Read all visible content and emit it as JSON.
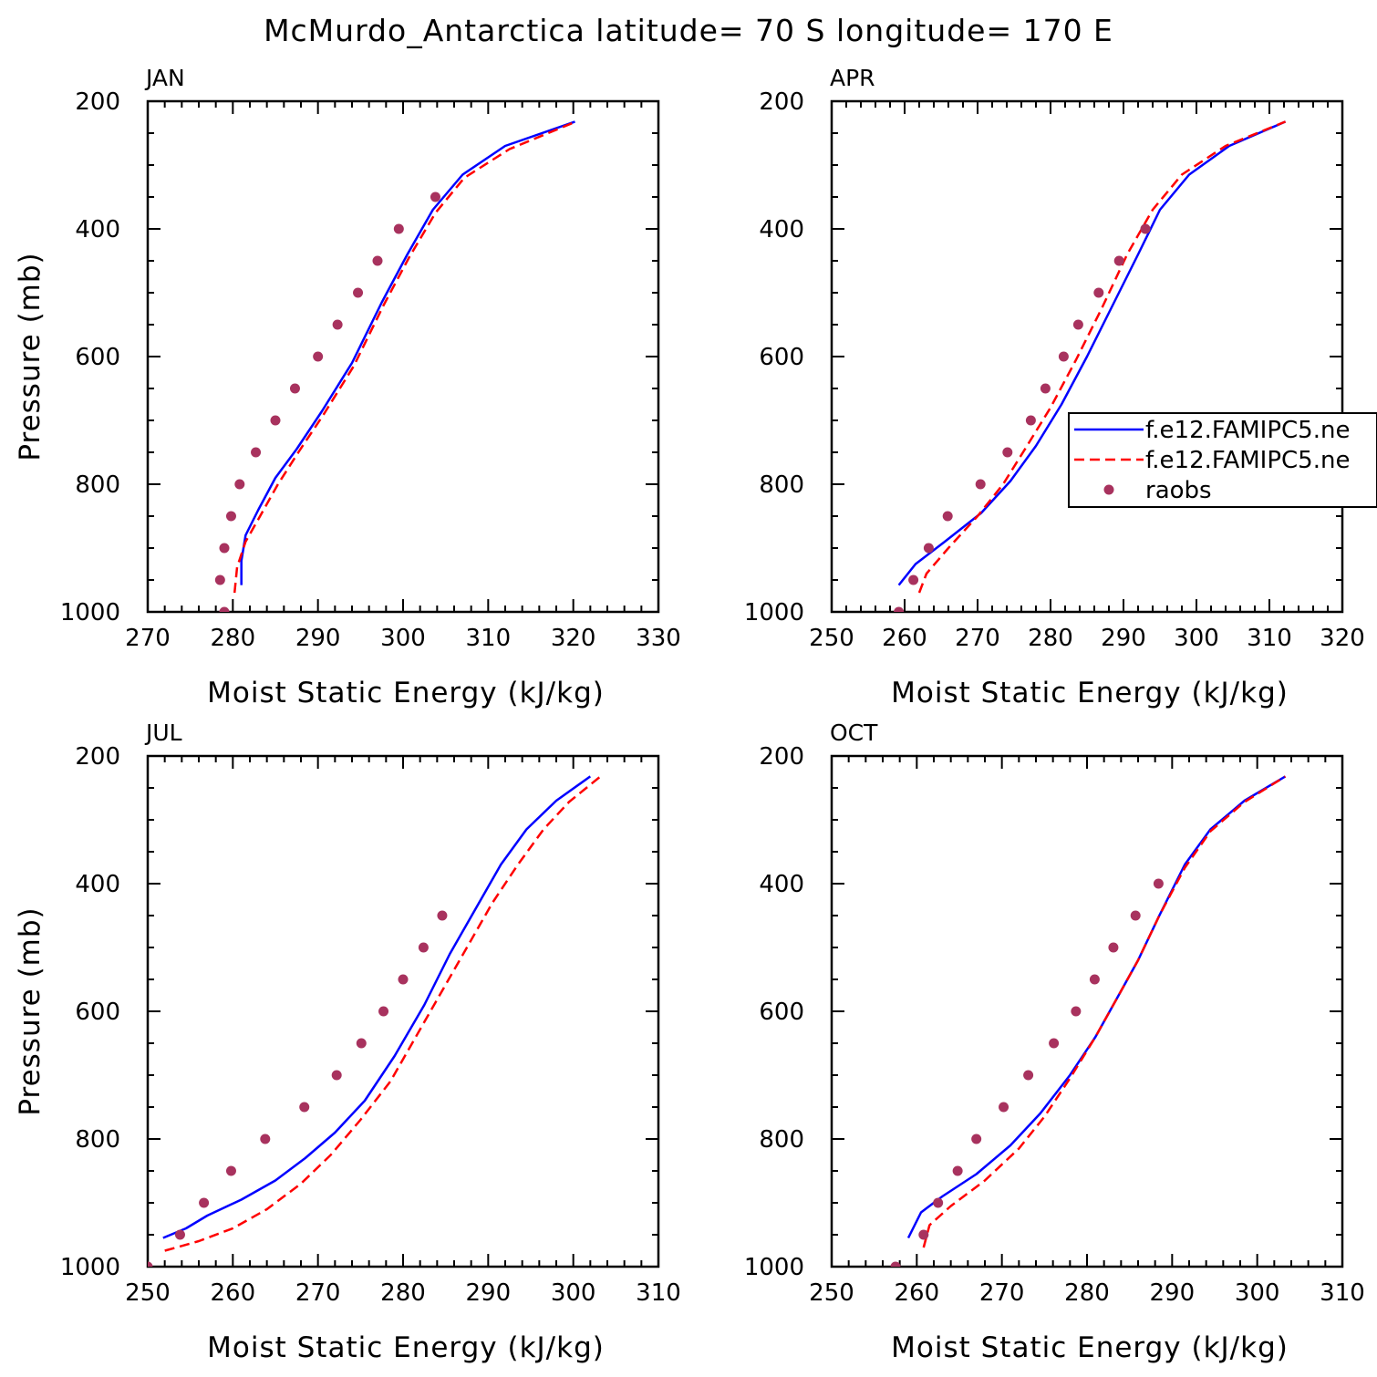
{
  "figure": {
    "title": "McMurdo_Antarctica  latitude= 70 S longitude= 170 E"
  },
  "legend": {
    "entries": [
      {
        "label": "f.e12.FAMIPC5.ne",
        "style": "solid",
        "color": "#0000ff"
      },
      {
        "label": "f.e12.FAMIPC5.ne",
        "style": "dashed",
        "color": "#ff0000"
      },
      {
        "label": "raobs",
        "style": "marker",
        "color": "#a8325e"
      }
    ]
  },
  "chart_data": [
    {
      "type": "line",
      "title": "JAN",
      "xlabel": "Moist Static Energy (kJ/kg)",
      "ylabel": "Pressure (mb)",
      "xlim": [
        270,
        330
      ],
      "ylim": [
        200,
        1000
      ],
      "y_inverted": true,
      "xticks": [
        270,
        280,
        290,
        300,
        310,
        320,
        330
      ],
      "yticks": [
        200,
        400,
        600,
        800,
        1000
      ],
      "series": [
        {
          "style": "solid",
          "color": "#0000ff",
          "x": [
            281.0,
            281.0,
            281.5,
            283.0,
            285.0,
            287.5,
            290.5,
            294.0,
            297.5,
            300.5,
            303.5,
            307.0,
            312.0,
            320.2
          ],
          "y": [
            958,
            920,
            880,
            840,
            790,
            745,
            685,
            610,
            515,
            440,
            370,
            315,
            270,
            232
          ]
        },
        {
          "style": "dashed",
          "color": "#ff0000",
          "x": [
            280.2,
            280.5,
            281.5,
            283.2,
            285.3,
            287.7,
            290.7,
            294.2,
            297.7,
            300.7,
            303.8,
            307.2,
            312.5,
            320.3
          ],
          "y": [
            970,
            930,
            890,
            850,
            800,
            750,
            690,
            615,
            520,
            445,
            375,
            320,
            275,
            232
          ]
        },
        {
          "style": "marker",
          "color": "#a8325e",
          "x": [
            279.0,
            278.5,
            279.0,
            279.8,
            280.8,
            282.7,
            285.0,
            287.3,
            290.0,
            292.3,
            294.7,
            297.0,
            299.5,
            303.8
          ],
          "y": [
            1000,
            950,
            900,
            850,
            800,
            750,
            700,
            650,
            600,
            550,
            500,
            450,
            400,
            350
          ]
        }
      ]
    },
    {
      "type": "line",
      "title": "APR",
      "xlabel": "Moist Static Energy (kJ/kg)",
      "ylabel": "",
      "xlim": [
        250,
        320
      ],
      "ylim": [
        200,
        1000
      ],
      "y_inverted": true,
      "xticks": [
        250,
        260,
        270,
        280,
        290,
        300,
        310,
        320
      ],
      "yticks": [
        200,
        400,
        600,
        800,
        1000
      ],
      "series": [
        {
          "style": "solid",
          "color": "#0000ff",
          "x": [
            259.2,
            261.5,
            265.5,
            270.5,
            274.5,
            278.0,
            281.5,
            285.0,
            288.5,
            292.0,
            295.0,
            299.0,
            304.5,
            312.2
          ],
          "y": [
            958,
            925,
            890,
            845,
            795,
            740,
            675,
            600,
            520,
            440,
            370,
            315,
            270,
            232
          ]
        },
        {
          "style": "dashed",
          "color": "#ff0000",
          "x": [
            262.0,
            263.0,
            266.0,
            270.0,
            273.5,
            276.5,
            280.0,
            283.5,
            287.0,
            290.5,
            294.0,
            298.0,
            304.0,
            312.2
          ],
          "y": [
            970,
            940,
            900,
            850,
            800,
            745,
            680,
            605,
            525,
            440,
            370,
            315,
            270,
            232
          ]
        },
        {
          "style": "marker",
          "color": "#a8325e",
          "x": [
            259.2,
            261.2,
            263.3,
            265.9,
            270.4,
            274.1,
            277.3,
            279.3,
            281.8,
            283.8,
            286.6,
            289.4,
            293.0
          ],
          "y": [
            1000,
            950,
            900,
            850,
            800,
            750,
            700,
            650,
            600,
            550,
            500,
            450,
            400
          ]
        }
      ]
    },
    {
      "type": "line",
      "title": "JUL",
      "xlabel": "Moist Static Energy (kJ/kg)",
      "ylabel": "Pressure (mb)",
      "xlim": [
        250,
        310
      ],
      "ylim": [
        200,
        1000
      ],
      "y_inverted": true,
      "xticks": [
        250,
        260,
        270,
        280,
        290,
        300,
        310
      ],
      "yticks": [
        200,
        400,
        600,
        800,
        1000
      ],
      "series": [
        {
          "style": "solid",
          "color": "#0000ff",
          "x": [
            251.8,
            254.5,
            257.0,
            261.0,
            265.0,
            268.5,
            272.0,
            275.5,
            279.0,
            282.5,
            285.5,
            288.5,
            291.5,
            294.5,
            298.0,
            302.0
          ],
          "y": [
            955,
            940,
            920,
            895,
            865,
            830,
            790,
            740,
            670,
            590,
            510,
            440,
            370,
            315,
            270,
            232
          ]
        },
        {
          "style": "dashed",
          "color": "#ff0000",
          "x": [
            252.0,
            256.0,
            260.0,
            264.0,
            268.0,
            271.5,
            275.0,
            278.5,
            281.5,
            284.5,
            287.5,
            290.5,
            293.5,
            296.5,
            299.5,
            303.2
          ],
          "y": [
            975,
            960,
            940,
            910,
            870,
            825,
            770,
            710,
            640,
            570,
            500,
            430,
            370,
            315,
            272,
            232
          ]
        },
        {
          "style": "marker",
          "color": "#a8325e",
          "x": [
            250.0,
            253.8,
            256.6,
            259.8,
            263.8,
            268.4,
            272.2,
            275.1,
            277.7,
            280.0,
            282.4,
            284.6
          ],
          "y": [
            1000,
            950,
            900,
            850,
            800,
            750,
            700,
            650,
            600,
            550,
            500,
            450
          ]
        }
      ]
    },
    {
      "type": "line",
      "title": "OCT",
      "xlabel": "Moist Static Energy (kJ/kg)",
      "ylabel": "",
      "xlim": [
        250,
        310
      ],
      "ylim": [
        200,
        1000
      ],
      "y_inverted": true,
      "xticks": [
        250,
        260,
        270,
        280,
        290,
        300,
        310
      ],
      "yticks": [
        200,
        400,
        600,
        800,
        1000
      ],
      "series": [
        {
          "style": "solid",
          "color": "#0000ff",
          "x": [
            259.0,
            260.5,
            263.0,
            267.0,
            271.0,
            274.5,
            278.0,
            281.0,
            283.5,
            286.0,
            288.5,
            291.5,
            294.5,
            298.5,
            303.3
          ],
          "y": [
            955,
            915,
            890,
            855,
            810,
            760,
            700,
            640,
            580,
            520,
            450,
            370,
            315,
            270,
            232
          ]
        },
        {
          "style": "dashed",
          "color": "#ff0000",
          "x": [
            260.8,
            261.5,
            264.0,
            268.0,
            272.0,
            275.0,
            278.0,
            281.0,
            283.5,
            286.0,
            288.5,
            291.5,
            294.5,
            298.5,
            303.3
          ],
          "y": [
            970,
            935,
            905,
            865,
            815,
            765,
            705,
            640,
            580,
            520,
            450,
            375,
            318,
            272,
            232
          ]
        },
        {
          "style": "marker",
          "color": "#a8325e",
          "x": [
            257.5,
            260.8,
            262.5,
            264.8,
            267.0,
            270.2,
            273.1,
            276.1,
            278.7,
            280.9,
            283.1,
            285.7,
            288.4
          ],
          "y": [
            1000,
            950,
            900,
            850,
            800,
            750,
            700,
            650,
            600,
            550,
            500,
            450,
            400
          ]
        }
      ]
    }
  ]
}
